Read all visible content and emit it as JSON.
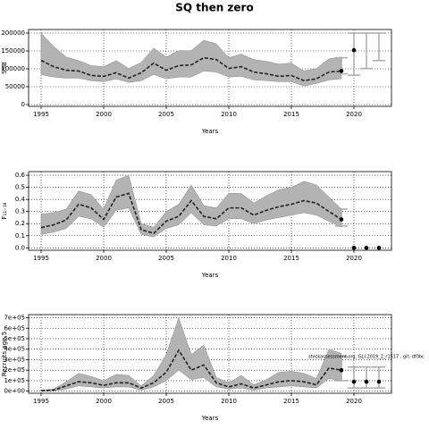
{
  "title": "SQ then zero",
  "chart_data": [
    {
      "type": "line",
      "xlabel": "Years",
      "ylabel": "SSB",
      "x": [
        1995,
        1996,
        1997,
        1998,
        1999,
        2000,
        2001,
        2002,
        2003,
        2004,
        2005,
        2006,
        2007,
        2008,
        2009,
        2010,
        2011,
        2012,
        2013,
        2014,
        2015,
        2016,
        2017,
        2018,
        2019
      ],
      "series": [
        {
          "color": "#222222",
          "values": [
            123500,
            106000,
            96000,
            94000,
            81500,
            79000,
            89000,
            74000,
            89000,
            116000,
            96000,
            109000,
            111000,
            131000,
            126000,
            101000,
            106000,
            91000,
            86000,
            79000,
            81500,
            67000,
            72000,
            91000,
            94000
          ]
        }
      ],
      "band": {
        "color": "#b3b3b3",
        "upper": [
          200000,
          163000,
          133000,
          123000,
          109000,
          106000,
          123000,
          101000,
          118000,
          158000,
          133000,
          151000,
          151000,
          180000,
          170000,
          131000,
          141000,
          126000,
          121000,
          113000,
          116000,
          94000,
          101000,
          128000,
          133000
        ],
        "lower": [
          84000,
          77000,
          74000,
          74000,
          67000,
          64000,
          72000,
          62000,
          67000,
          84000,
          72000,
          77000,
          77000,
          94000,
          91000,
          77000,
          79000,
          69000,
          67000,
          64000,
          64000,
          52000,
          59000,
          69000,
          72000
        ]
      },
      "projection": {
        "x": [
          2019,
          2020,
          2021,
          2022
        ],
        "values": [
          94000,
          152000,
          null,
          null
        ],
        "lower": [
          86000,
          82000,
          101000,
          123000
        ],
        "upper": [
          131000,
          200000,
          200000,
          200000
        ],
        "color": "#aaaaaa"
      },
      "xlim": [
        1994,
        2023
      ],
      "xticks": [
        1995,
        2000,
        2005,
        2010,
        2015,
        2020
      ],
      "ylim": [
        -5000,
        210000
      ],
      "yticks": [
        0,
        50000,
        100000,
        150000,
        200000
      ],
      "grid": true
    },
    {
      "type": "line",
      "xlabel": "Years",
      "ylabel": "F₁₁₋₁₈",
      "x": [
        1995,
        1996,
        1997,
        1998,
        1999,
        2000,
        2001,
        2002,
        2003,
        2004,
        2005,
        2006,
        2007,
        2008,
        2009,
        2010,
        2011,
        2012,
        2013,
        2014,
        2015,
        2016,
        2017,
        2018,
        2019
      ],
      "series": [
        {
          "color": "#222222",
          "values": [
            0.167,
            0.19,
            0.23,
            0.36,
            0.33,
            0.235,
            0.42,
            0.45,
            0.15,
            0.12,
            0.22,
            0.26,
            0.39,
            0.26,
            0.24,
            0.33,
            0.33,
            0.27,
            0.31,
            0.34,
            0.36,
            0.39,
            0.37,
            0.3,
            0.235
          ]
        }
      ],
      "band": {
        "color": "#b3b3b3",
        "upper": [
          0.28,
          0.29,
          0.32,
          0.47,
          0.44,
          0.32,
          0.56,
          0.6,
          0.2,
          0.17,
          0.3,
          0.36,
          0.52,
          0.35,
          0.33,
          0.45,
          0.45,
          0.37,
          0.43,
          0.48,
          0.5,
          0.55,
          0.52,
          0.42,
          0.32
        ],
        "lower": [
          0.11,
          0.13,
          0.16,
          0.26,
          0.24,
          0.17,
          0.31,
          0.33,
          0.11,
          0.09,
          0.16,
          0.19,
          0.29,
          0.19,
          0.18,
          0.24,
          0.24,
          0.2,
          0.23,
          0.25,
          0.27,
          0.29,
          0.27,
          0.22,
          0.17
        ]
      },
      "projection": {
        "x": [
          2019,
          2020,
          2021,
          2022
        ],
        "values": [
          0.235,
          0,
          0,
          0
        ],
        "lower": [
          0.18,
          null,
          null,
          null
        ],
        "upper": [
          0.32,
          null,
          null,
          null
        ],
        "color": "#aaaaaa"
      },
      "xlim": [
        1994,
        2023
      ],
      "xticks": [
        1995,
        2000,
        2005,
        2010,
        2015,
        2020
      ],
      "ylim": [
        -0.02,
        0.63
      ],
      "yticks": [
        {
          "value": 0,
          "label": "0.0"
        },
        0.1,
        0.2,
        0.3,
        0.4,
        0.5,
        0.6
      ],
      "grid": true
    },
    {
      "type": "line",
      "xlabel": "Years",
      "ylabel": "Recruits age 5",
      "annotation": "stockassessment.org, GLI.2019_2_r1517 , git: df0bc",
      "x": [
        1995,
        1996,
        1997,
        1998,
        1999,
        2000,
        2001,
        2002,
        2003,
        2004,
        2005,
        2006,
        2007,
        2008,
        2009,
        2010,
        2011,
        2012,
        2013,
        2014,
        2015,
        2016,
        2017,
        2018,
        2019
      ],
      "series": [
        {
          "color": "#222222",
          "values": [
            5000,
            10000,
            50000,
            90000,
            80000,
            55000,
            80000,
            80000,
            30000,
            80000,
            180000,
            390000,
            200000,
            250000,
            80000,
            40000,
            70000,
            30000,
            60000,
            90000,
            100000,
            90000,
            60000,
            220000,
            200000
          ]
        }
      ],
      "band": {
        "color": "#b3b3b3",
        "upper": [
          8000,
          20000,
          90000,
          170000,
          140000,
          100000,
          160000,
          150000,
          50000,
          150000,
          350000,
          700000,
          350000,
          440000,
          130000,
          80000,
          150000,
          60000,
          110000,
          180000,
          190000,
          170000,
          120000,
          400000,
          360000
        ],
        "lower": [
          0,
          5000,
          20000,
          50000,
          40000,
          30000,
          40000,
          40000,
          10000,
          40000,
          100000,
          200000,
          110000,
          130000,
          40000,
          20000,
          30000,
          10000,
          30000,
          40000,
          50000,
          40000,
          30000,
          120000,
          100000
        ]
      },
      "projection": {
        "x": [
          2019,
          2020,
          2021,
          2022
        ],
        "values": [
          200000,
          90000,
          90000,
          90000
        ],
        "lower": [
          100000,
          30000,
          30000,
          30000
        ],
        "upper": [
          330000,
          230000,
          230000,
          230000
        ],
        "color": "#aaaaaa"
      },
      "xlim": [
        1994,
        2023
      ],
      "xticks": [
        1995,
        2000,
        2005,
        2010,
        2015,
        2020
      ],
      "ylim": [
        -20000,
        730000
      ],
      "yticks": [
        {
          "value": 0,
          "label": "0e+00"
        },
        {
          "value": 100000,
          "label": "1e+05"
        },
        {
          "value": 200000,
          "label": "2e+05"
        },
        {
          "value": 300000,
          "label": "3e+05"
        },
        {
          "value": 400000,
          "label": "4e+05"
        },
        {
          "value": 500000,
          "label": "5e+05"
        },
        {
          "value": 600000,
          "label": "6e+05"
        },
        {
          "value": 700000,
          "label": "7e+05"
        }
      ],
      "grid": true
    }
  ]
}
